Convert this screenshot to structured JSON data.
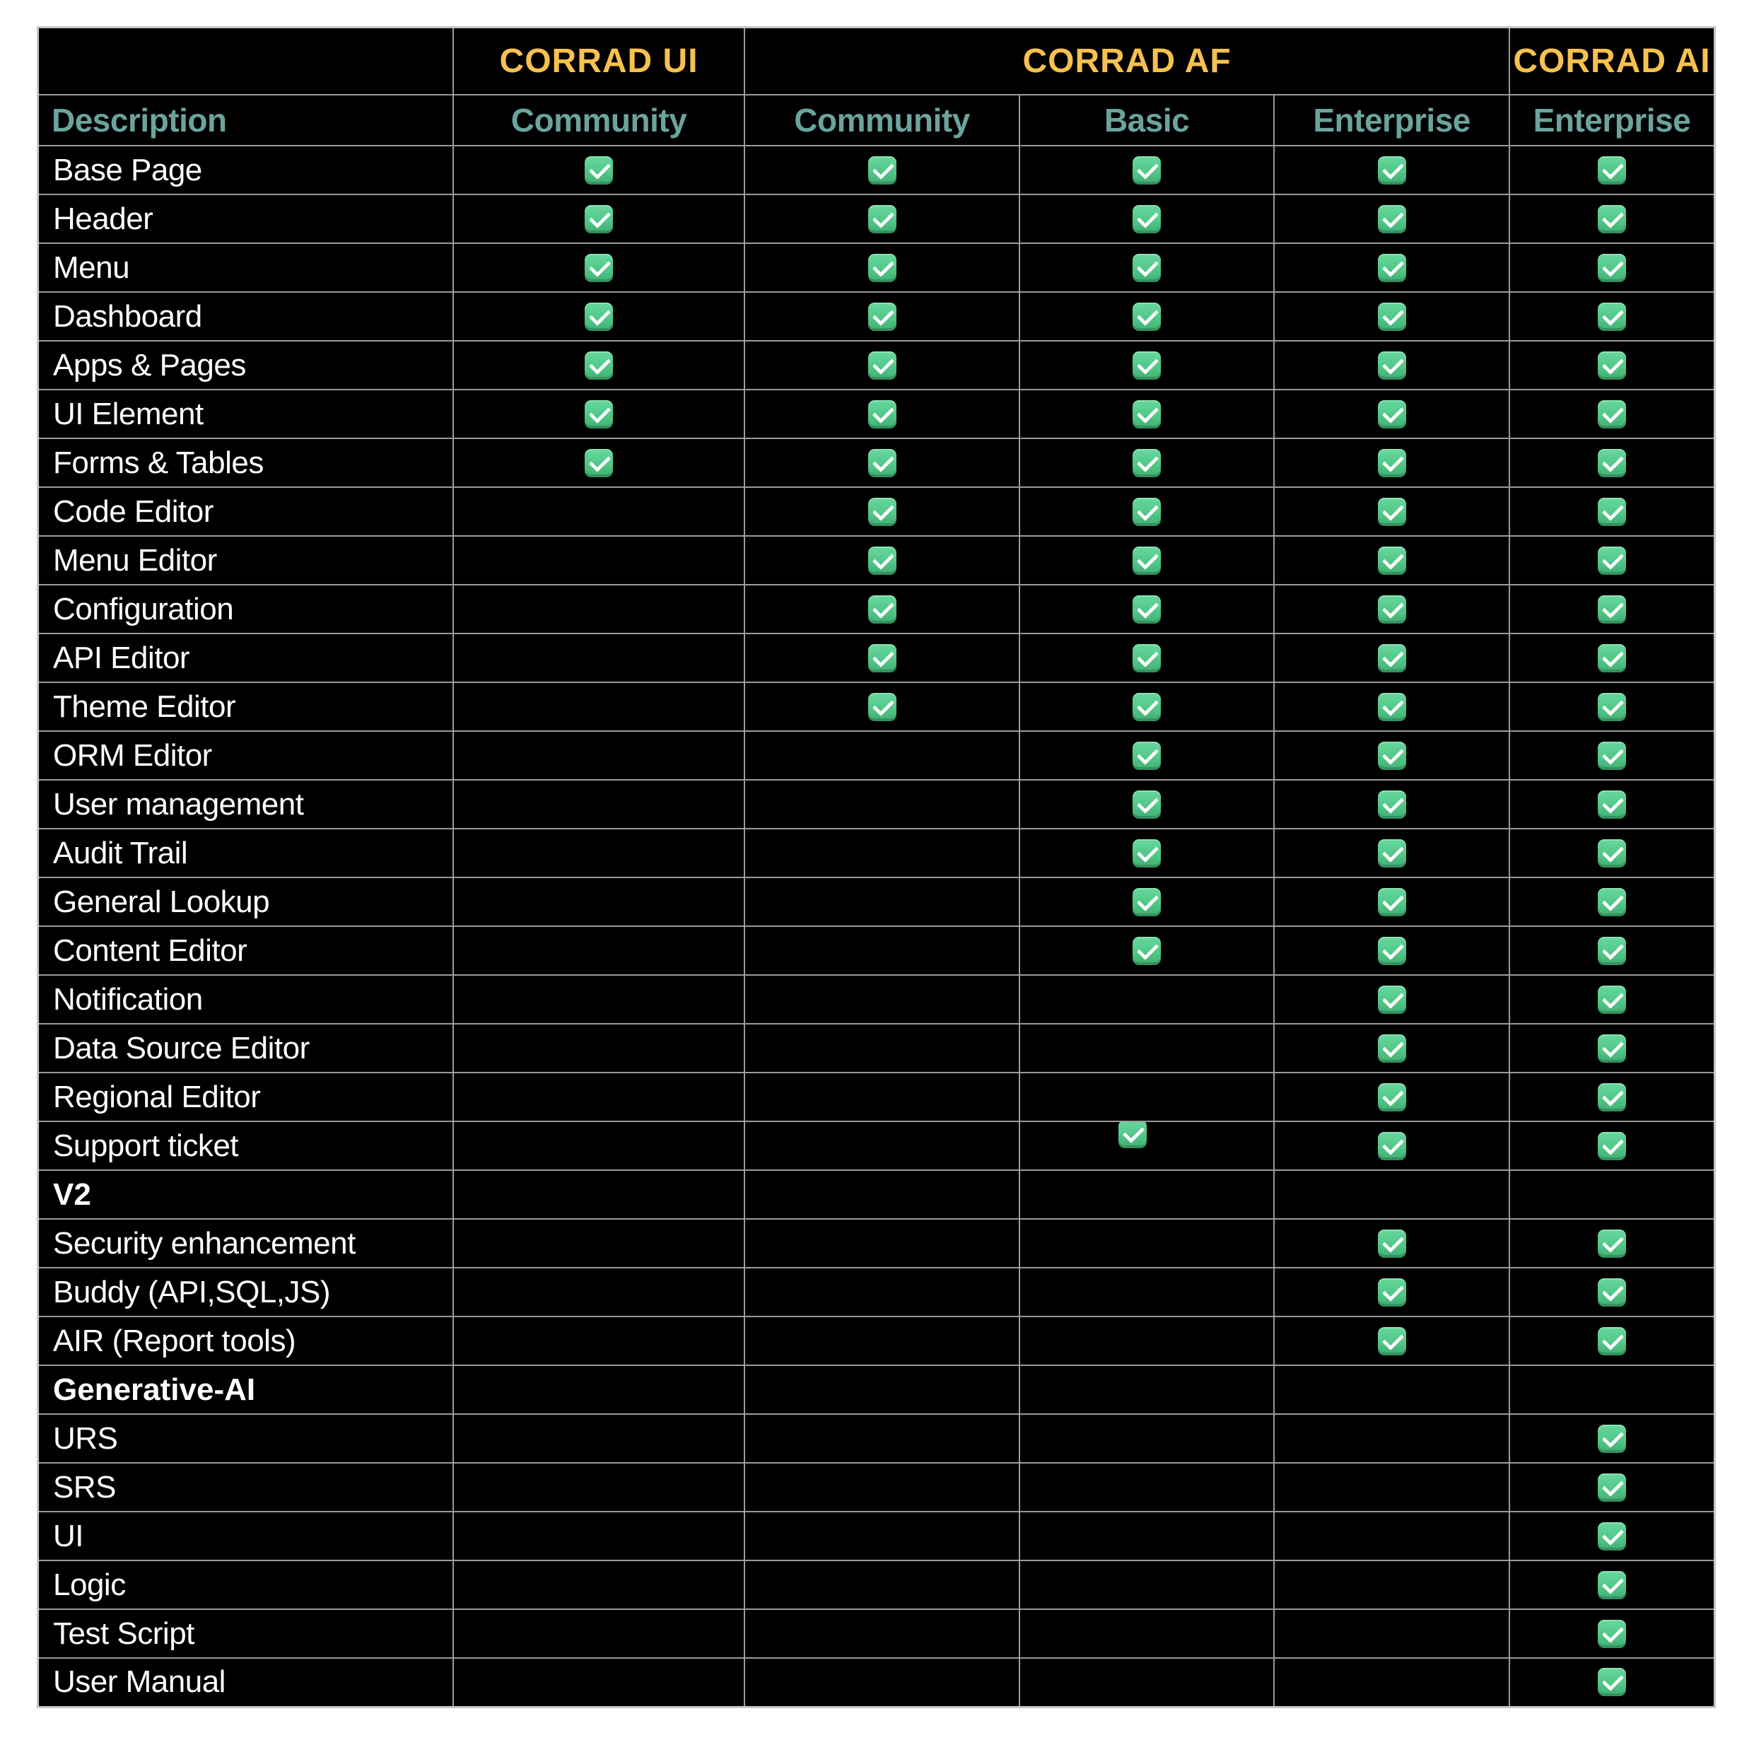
{
  "table": {
    "header_groups": [
      {
        "label": "",
        "span": 1
      },
      {
        "label": "CORRAD UI",
        "span": 1
      },
      {
        "label": "CORRAD AF",
        "span": 3
      },
      {
        "label": "CORRAD AI",
        "span": 1
      }
    ],
    "columns": [
      "Description",
      "Community",
      "Community",
      "Basic",
      "Enterprise",
      "Enterprise"
    ],
    "check_icon": "checkmark-icon",
    "rows": [
      {
        "label": "Base Page",
        "type": "feature",
        "checks": [
          true,
          true,
          true,
          true,
          true
        ]
      },
      {
        "label": "Header",
        "type": "feature",
        "checks": [
          true,
          true,
          true,
          true,
          true
        ]
      },
      {
        "label": "Menu",
        "type": "feature",
        "checks": [
          true,
          true,
          true,
          true,
          true
        ]
      },
      {
        "label": "Dashboard",
        "type": "feature",
        "checks": [
          true,
          true,
          true,
          true,
          true
        ]
      },
      {
        "label": "Apps & Pages",
        "type": "feature",
        "checks": [
          true,
          true,
          true,
          true,
          true
        ]
      },
      {
        "label": "UI Element",
        "type": "feature",
        "checks": [
          true,
          true,
          true,
          true,
          true
        ]
      },
      {
        "label": "Forms & Tables",
        "type": "feature",
        "checks": [
          true,
          true,
          true,
          true,
          true
        ]
      },
      {
        "label": "Code Editor",
        "type": "feature",
        "checks": [
          false,
          true,
          true,
          true,
          true
        ]
      },
      {
        "label": "Menu Editor",
        "type": "feature",
        "checks": [
          false,
          true,
          true,
          true,
          true
        ]
      },
      {
        "label": "Configuration",
        "type": "feature",
        "checks": [
          false,
          true,
          true,
          true,
          true
        ]
      },
      {
        "label": "API Editor",
        "type": "feature",
        "checks": [
          false,
          true,
          true,
          true,
          true
        ]
      },
      {
        "label": "Theme Editor",
        "type": "feature",
        "checks": [
          false,
          true,
          true,
          true,
          true
        ]
      },
      {
        "label": "ORM Editor",
        "type": "feature",
        "checks": [
          false,
          false,
          true,
          true,
          true
        ]
      },
      {
        "label": "User management",
        "type": "feature",
        "checks": [
          false,
          false,
          true,
          true,
          true
        ]
      },
      {
        "label": "Audit Trail",
        "type": "feature",
        "checks": [
          false,
          false,
          true,
          true,
          true
        ]
      },
      {
        "label": "General Lookup",
        "type": "feature",
        "checks": [
          false,
          false,
          true,
          true,
          true
        ]
      },
      {
        "label": "Content Editor",
        "type": "feature",
        "checks": [
          false,
          false,
          true,
          true,
          true
        ]
      },
      {
        "label": "Notification",
        "type": "feature",
        "checks": [
          false,
          false,
          false,
          true,
          true
        ]
      },
      {
        "label": "Data Source Editor",
        "type": "feature",
        "checks": [
          false,
          false,
          false,
          true,
          true
        ]
      },
      {
        "label": "Regional Editor",
        "type": "feature",
        "checks": [
          false,
          false,
          false,
          true,
          true
        ]
      },
      {
        "label": "Support ticket",
        "type": "feature",
        "checks": [
          false,
          false,
          true,
          true,
          true
        ]
      },
      {
        "label": "V2",
        "type": "section",
        "checks": [
          false,
          false,
          false,
          false,
          false
        ]
      },
      {
        "label": "Security enhancement",
        "type": "feature",
        "checks": [
          false,
          false,
          false,
          true,
          true
        ]
      },
      {
        "label": "Buddy (API,SQL,JS)",
        "type": "feature",
        "checks": [
          false,
          false,
          false,
          true,
          true
        ]
      },
      {
        "label": "AIR (Report tools)",
        "type": "feature",
        "checks": [
          false,
          false,
          false,
          true,
          true
        ]
      },
      {
        "label": "Generative-AI",
        "type": "section",
        "checks": [
          false,
          false,
          false,
          false,
          false
        ]
      },
      {
        "label": "URS",
        "type": "feature",
        "checks": [
          false,
          false,
          false,
          false,
          true
        ]
      },
      {
        "label": "SRS",
        "type": "feature",
        "checks": [
          false,
          false,
          false,
          false,
          true
        ]
      },
      {
        "label": "UI",
        "type": "feature",
        "checks": [
          false,
          false,
          false,
          false,
          true
        ]
      },
      {
        "label": "Logic",
        "type": "feature",
        "checks": [
          false,
          false,
          false,
          false,
          true
        ]
      },
      {
        "label": "Test Script",
        "type": "feature",
        "checks": [
          false,
          false,
          false,
          false,
          true
        ]
      },
      {
        "label": "User Manual",
        "type": "feature",
        "checks": [
          false,
          false,
          false,
          false,
          true
        ]
      }
    ],
    "colors": {
      "page_background": "#ffffff",
      "table_background": "#000000",
      "grid_line": "#9b9b9b",
      "group_header_text": "#f6c14f",
      "tier_header_text": "#6ba49d",
      "row_text": "#ffffff",
      "check_green": "#52c789"
    }
  },
  "chart_data": {
    "type": "table",
    "title": "",
    "column_groups": [
      "",
      "CORRAD UI",
      "CORRAD AF",
      "CORRAD AF",
      "CORRAD AF",
      "CORRAD AI"
    ],
    "columns": [
      "Description",
      "Community",
      "Community",
      "Basic",
      "Enterprise",
      "Enterprise"
    ],
    "rows": [
      [
        "Base Page",
        1,
        1,
        1,
        1,
        1
      ],
      [
        "Header",
        1,
        1,
        1,
        1,
        1
      ],
      [
        "Menu",
        1,
        1,
        1,
        1,
        1
      ],
      [
        "Dashboard",
        1,
        1,
        1,
        1,
        1
      ],
      [
        "Apps & Pages",
        1,
        1,
        1,
        1,
        1
      ],
      [
        "UI Element",
        1,
        1,
        1,
        1,
        1
      ],
      [
        "Forms & Tables",
        1,
        1,
        1,
        1,
        1
      ],
      [
        "Code Editor",
        0,
        1,
        1,
        1,
        1
      ],
      [
        "Menu Editor",
        0,
        1,
        1,
        1,
        1
      ],
      [
        "Configuration",
        0,
        1,
        1,
        1,
        1
      ],
      [
        "API Editor",
        0,
        1,
        1,
        1,
        1
      ],
      [
        "Theme Editor",
        0,
        1,
        1,
        1,
        1
      ],
      [
        "ORM Editor",
        0,
        0,
        1,
        1,
        1
      ],
      [
        "User management",
        0,
        0,
        1,
        1,
        1
      ],
      [
        "Audit Trail",
        0,
        0,
        1,
        1,
        1
      ],
      [
        "General Lookup",
        0,
        0,
        1,
        1,
        1
      ],
      [
        "Content Editor",
        0,
        0,
        1,
        1,
        1
      ],
      [
        "Notification",
        0,
        0,
        0,
        1,
        1
      ],
      [
        "Data Source Editor",
        0,
        0,
        0,
        1,
        1
      ],
      [
        "Regional Editor",
        0,
        0,
        0,
        1,
        1
      ],
      [
        "Support ticket",
        0,
        0,
        1,
        1,
        1
      ],
      [
        "V2",
        0,
        0,
        0,
        0,
        0
      ],
      [
        "Security enhancement",
        0,
        0,
        0,
        1,
        1
      ],
      [
        "Buddy (API,SQL,JS)",
        0,
        0,
        0,
        1,
        1
      ],
      [
        "AIR (Report tools)",
        0,
        0,
        0,
        1,
        1
      ],
      [
        "Generative-AI",
        0,
        0,
        0,
        0,
        0
      ],
      [
        "URS",
        0,
        0,
        0,
        0,
        1
      ],
      [
        "SRS",
        0,
        0,
        0,
        0,
        1
      ],
      [
        "UI",
        0,
        0,
        0,
        0,
        1
      ],
      [
        "Logic",
        0,
        0,
        0,
        0,
        1
      ],
      [
        "Test Script",
        0,
        0,
        0,
        0,
        1
      ],
      [
        "User Manual",
        0,
        0,
        0,
        0,
        1
      ]
    ],
    "cell_legend": {
      "1": "included (green check)",
      "0": "not included (empty cell)"
    }
  }
}
